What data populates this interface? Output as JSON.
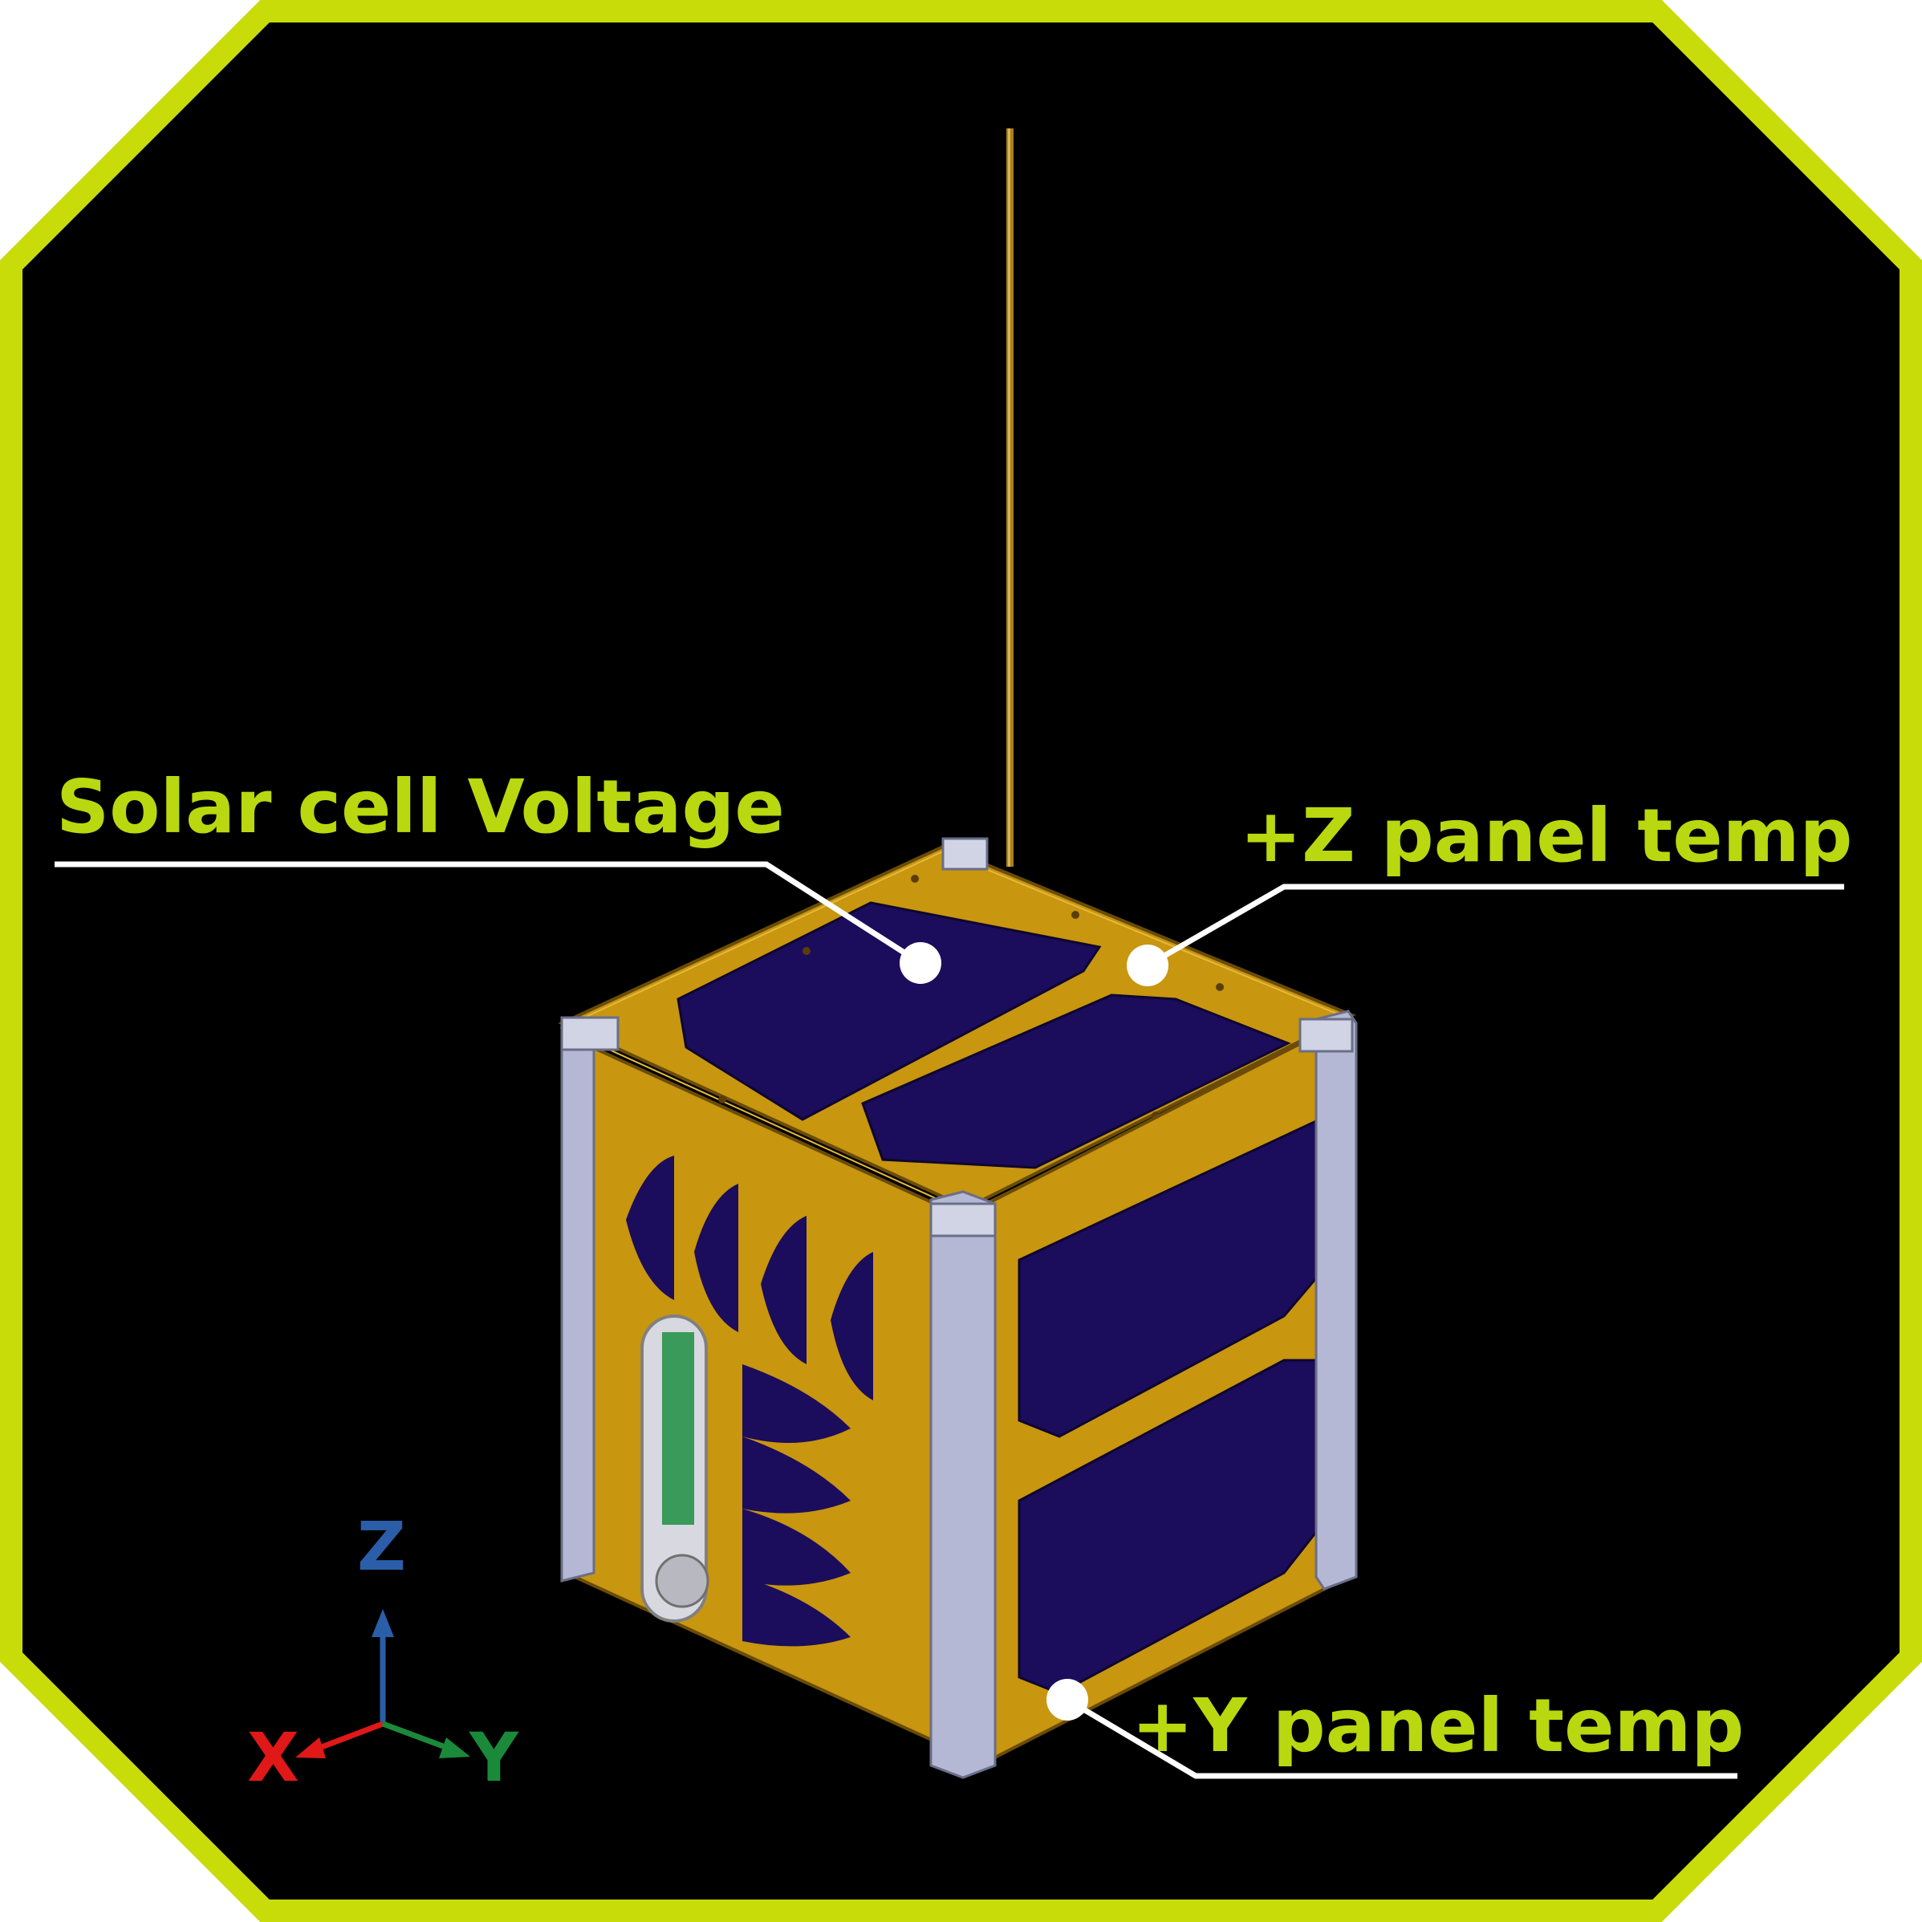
{
  "labels": {
    "solar_cell_voltage": "Solar cell Voltage",
    "z_panel_temp": "+Z panel temp",
    "y_panel_temp": "+Y panel temp"
  },
  "axes": {
    "z": "Z",
    "x": "X",
    "y": "Y"
  },
  "colors": {
    "frame": "#c8dc0a",
    "label_text": "#b9d80f",
    "leader_line": "#ffffff",
    "gold_panel": "#c8960f",
    "solar_cell": "#1c0c5c",
    "rail": "#b4b8d4",
    "axis_z": "#2a5ea8",
    "axis_x": "#e01818",
    "axis_y": "#1a8a3a"
  }
}
